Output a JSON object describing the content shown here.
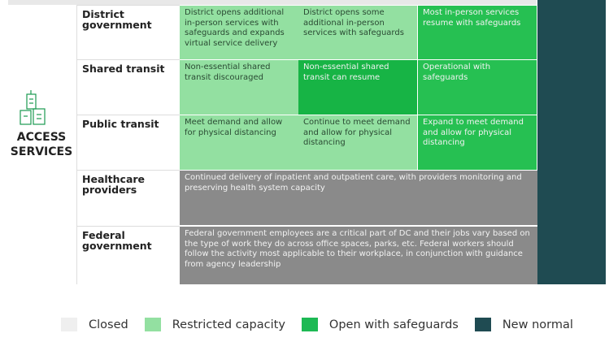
{
  "section": {
    "label": "ACCESS SERVICES"
  },
  "rows": [
    {
      "label": "District government",
      "cells": [
        {
          "text": "District opens additional in-person services with safeguards and expands virtual service delivery",
          "color": "#93e0a1",
          "span": 1
        },
        {
          "text": "District opens some additional in-person services with safeguards",
          "color": "#93e0a1",
          "span": 1
        },
        {
          "text": "Most in-person services resume with safeguards",
          "color": "#26c052",
          "span": 1
        }
      ]
    },
    {
      "label": "Shared transit",
      "cells": [
        {
          "text": "Non-essential shared transit discouraged",
          "color": "#93e0a1",
          "span": 1
        },
        {
          "text": "Non-essential shared transit can resume",
          "color": "#17b445",
          "span": 1
        },
        {
          "text": "Operational with safeguards",
          "color": "#26c052",
          "span": 1
        }
      ]
    },
    {
      "label": "Public transit",
      "cells": [
        {
          "text": "Meet demand and allow for physical distancing",
          "color": "#93e0a1",
          "span": 1
        },
        {
          "text": "Continue to meet demand and allow for physical distancing",
          "color": "#93e0a1",
          "span": 1
        },
        {
          "text": "Expand to meet demand and allow for physical distancing",
          "color": "#26c052",
          "span": 1
        }
      ]
    },
    {
      "label": "Healthcare providers",
      "cells": [
        {
          "text": "Continued delivery of inpatient and outpatient care, with providers monitoring and preserving health system capacity",
          "color": "#8a8a8a",
          "span": 3
        }
      ]
    },
    {
      "label": "Federal government",
      "cells": [
        {
          "text": "Federal government employees are a critical part of DC and their jobs vary based on the type of work they do across office spaces, parks, etc. Federal workers should follow the activity most applicable to their workplace, in conjunction with guidance from agency leadership",
          "color": "#8a8a8a",
          "span": 3
        }
      ]
    }
  ],
  "new_normal_color": "#1f4b52",
  "legend": [
    {
      "label": "Closed",
      "color": "#efefef"
    },
    {
      "label": "Restricted capacity",
      "color": "#93e0a1"
    },
    {
      "label": "Open with safeguards",
      "color": "#1db954"
    },
    {
      "label": "New normal",
      "color": "#1f4b52"
    }
  ]
}
